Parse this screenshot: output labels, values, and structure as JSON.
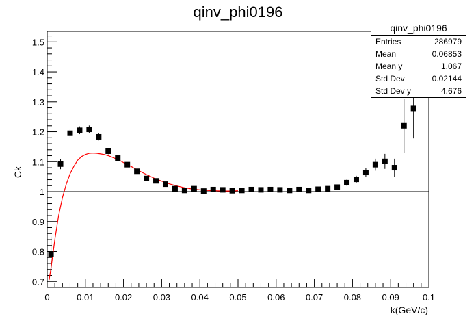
{
  "chart_data": {
    "type": "scatter",
    "title": "qinv_phi0196",
    "xlabel": "k(GeV/c)",
    "ylabel": "Ck",
    "xlim": [
      0,
      0.1
    ],
    "ylim": [
      0.68,
      1.535
    ],
    "x_ticks": [
      0,
      0.01,
      0.02,
      0.03,
      0.04,
      0.05,
      0.06,
      0.07,
      0.08,
      0.09,
      0.1
    ],
    "x_tick_labels": [
      "0",
      "0.01",
      "0.02",
      "0.03",
      "0.04",
      "0.05",
      "0.06",
      "0.07",
      "0.08",
      "0.09",
      "0.1"
    ],
    "y_ticks": [
      0.7,
      0.8,
      0.9,
      1.0,
      1.1,
      1.2,
      1.3,
      1.4,
      1.5
    ],
    "y_tick_labels": [
      "0.7",
      "0.8",
      "0.9",
      "1",
      "1.1",
      "1.2",
      "1.3",
      "1.4",
      "1.5"
    ],
    "reference_line_y": 1.0,
    "series": [
      {
        "color": "#000000",
        "marker": "square",
        "x": [
          0.001,
          0.0035,
          0.006,
          0.0085,
          0.011,
          0.0135,
          0.016,
          0.0185,
          0.021,
          0.0235,
          0.026,
          0.0285,
          0.031,
          0.0335,
          0.036,
          0.0385,
          0.041,
          0.0435,
          0.046,
          0.0485,
          0.051,
          0.0535,
          0.056,
          0.0585,
          0.061,
          0.0635,
          0.066,
          0.0685,
          0.071,
          0.0735,
          0.076,
          0.0785,
          0.081,
          0.0835,
          0.086,
          0.0885,
          0.091,
          0.0935,
          0.096
        ],
        "y": [
          0.79,
          1.092,
          1.195,
          1.205,
          1.208,
          1.183,
          1.135,
          1.112,
          1.09,
          1.068,
          1.044,
          1.036,
          1.025,
          1.01,
          1.004,
          1.01,
          1.002,
          1.007,
          1.006,
          1.003,
          1.004,
          1.007,
          1.006,
          1.007,
          1.006,
          1.004,
          1.007,
          1.004,
          1.008,
          1.01,
          1.015,
          1.03,
          1.041,
          1.064,
          1.09,
          1.101,
          1.08,
          1.22,
          1.278
        ],
        "err": [
          0.06,
          0.017,
          0.015,
          0.013,
          0.013,
          0.012,
          0.01,
          0.009,
          0.008,
          0.008,
          0.007,
          0.007,
          0.007,
          0.006,
          0.006,
          0.006,
          0.006,
          0.006,
          0.006,
          0.006,
          0.006,
          0.006,
          0.006,
          0.006,
          0.006,
          0.006,
          0.006,
          0.006,
          0.007,
          0.008,
          0.009,
          0.01,
          0.012,
          0.016,
          0.02,
          0.025,
          0.03,
          0.09,
          0.1
        ]
      },
      {
        "type": "line",
        "color": "#ff0000",
        "x": [
          0.0005,
          0.001,
          0.002,
          0.003,
          0.004,
          0.005,
          0.006,
          0.007,
          0.008,
          0.009,
          0.01,
          0.011,
          0.012,
          0.013,
          0.014,
          0.015,
          0.016,
          0.017,
          0.018,
          0.019,
          0.02,
          0.022,
          0.024,
          0.026,
          0.028,
          0.03,
          0.032,
          0.034,
          0.036,
          0.038,
          0.04,
          0.042,
          0.044,
          0.046,
          0.048,
          0.05
        ],
        "y": [
          0.705,
          0.745,
          0.84,
          0.92,
          0.98,
          1.025,
          1.06,
          1.085,
          1.105,
          1.117,
          1.124,
          1.128,
          1.129,
          1.128,
          1.126,
          1.124,
          1.12,
          1.115,
          1.11,
          1.104,
          1.097,
          1.084,
          1.07,
          1.057,
          1.045,
          1.035,
          1.026,
          1.019,
          1.013,
          1.009,
          1.006,
          1.004,
          1.003,
          1.002,
          1.002,
          1.003
        ]
      }
    ],
    "stats": {
      "title": "qinv_phi0196",
      "rows": [
        {
          "label": "Entries",
          "value": "286979"
        },
        {
          "label": "Mean",
          "value": "0.06853"
        },
        {
          "label": "Mean y",
          "value": "1.067"
        },
        {
          "label": "Std Dev",
          "value": "0.02144"
        },
        {
          "label": "Std Dev y",
          "value": "4.676"
        }
      ]
    }
  }
}
